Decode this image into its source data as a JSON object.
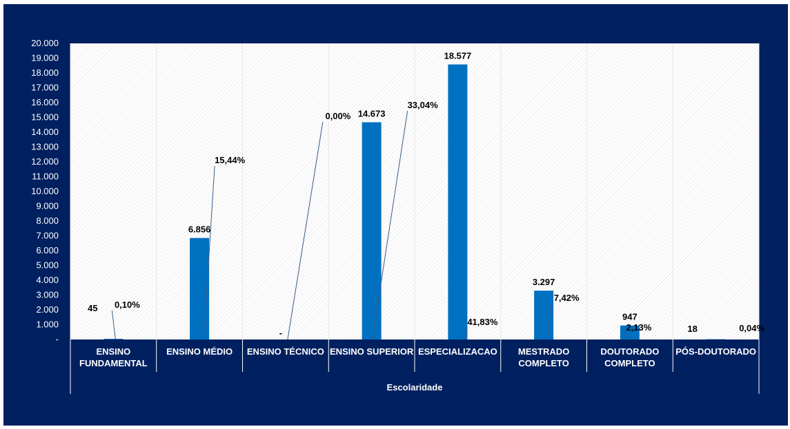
{
  "chart_data": {
    "type": "bar",
    "title": "",
    "xlabel": "Escolaridade",
    "ylabel": "",
    "ylim": [
      0,
      20000
    ],
    "y_ticks": [
      "-",
      "1.000",
      "2.000",
      "3.000",
      "4.000",
      "5.000",
      "6.000",
      "7.000",
      "8.000",
      "9.000",
      "10.000",
      "11.000",
      "12.000",
      "13.000",
      "14.000",
      "15.000",
      "16.000",
      "17.000",
      "18.000",
      "19.000",
      "20.000"
    ],
    "categories": [
      [
        "ENSINO",
        "FUNDAMENTAL"
      ],
      [
        "ENSINO MÉDIO"
      ],
      [
        "ENSINO TÉCNICO"
      ],
      [
        "ENSINO SUPERIOR"
      ],
      [
        "ESPECIALIZACAO"
      ],
      [
        "MESTRADO",
        "COMPLETO"
      ],
      [
        "DOUTORADO",
        "COMPLETO"
      ],
      [
        "PÓS-DOUTORADO"
      ]
    ],
    "values": [
      45,
      6856,
      0,
      14673,
      18577,
      3297,
      947,
      18
    ],
    "value_labels": [
      "45",
      "6.856",
      "-",
      "14.673",
      "18.577",
      "3.297",
      "947",
      "18"
    ],
    "percent_labels": [
      "0,10%",
      "15,44%",
      "0,00%",
      "33,04%",
      "41,83%",
      "7,42%",
      "2,13%",
      "0,04%"
    ],
    "colors": {
      "bar": "#0070C0",
      "frame": "#002060",
      "plot": "#ffffff",
      "hatch": "#d9d9d9",
      "leader": "#3b5a8a"
    },
    "grid": true,
    "legend": "none"
  }
}
